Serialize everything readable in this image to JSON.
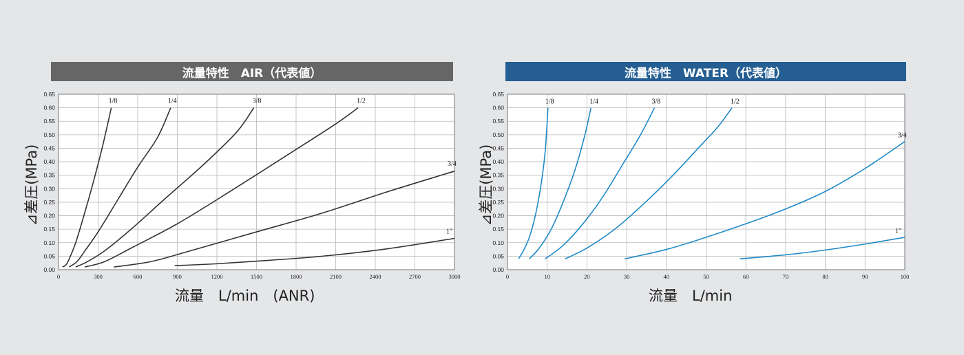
{
  "colors": {
    "background": "#e5e6e8",
    "air_header": "#666666",
    "water_header": "#245e92",
    "air_line": "#333333",
    "water_line": "#1f8ac8"
  },
  "chart_data": [
    {
      "type": "line",
      "header": "流量特性　AIR（代表値）",
      "xlabel": "流量　L/min　(ANR)",
      "ylabel": "⊿差圧(MPa)",
      "xlim": [
        0,
        3000
      ],
      "ylim": [
        0,
        0.65
      ],
      "x_ticks": [
        "0",
        "300",
        "600",
        "900",
        "1200",
        "1500",
        "1800",
        "2100",
        "2400",
        "2700",
        "3000"
      ],
      "y_ticks": [
        "0.00",
        "0.05",
        "0.10",
        "0.15",
        "0.20",
        "0.25",
        "0.30",
        "0.35",
        "0.40",
        "0.45",
        "0.50",
        "0.55",
        "0.60",
        "0.65"
      ],
      "grid": true,
      "series": [
        {
          "name": "1/8",
          "points": [
            [
              30,
              0.01
            ],
            [
              60,
              0.02
            ],
            [
              90,
              0.05
            ],
            [
              130,
              0.1
            ],
            [
              180,
              0.18
            ],
            [
              250,
              0.3
            ],
            [
              330,
              0.45
            ],
            [
              400,
              0.6
            ]
          ]
        },
        {
          "name": "1/4",
          "points": [
            [
              80,
              0.01
            ],
            [
              140,
              0.03
            ],
            [
              200,
              0.07
            ],
            [
              300,
              0.14
            ],
            [
              450,
              0.26
            ],
            [
              600,
              0.38
            ],
            [
              750,
              0.49
            ],
            [
              850,
              0.6
            ]
          ]
        },
        {
          "name": "3/8",
          "points": [
            [
              130,
              0.01
            ],
            [
              220,
              0.03
            ],
            [
              350,
              0.07
            ],
            [
              550,
              0.15
            ],
            [
              800,
              0.26
            ],
            [
              1100,
              0.39
            ],
            [
              1350,
              0.51
            ],
            [
              1480,
              0.6
            ]
          ]
        },
        {
          "name": "1/2",
          "points": [
            [
              200,
              0.01
            ],
            [
              350,
              0.03
            ],
            [
              550,
              0.08
            ],
            [
              900,
              0.17
            ],
            [
              1300,
              0.29
            ],
            [
              1750,
              0.43
            ],
            [
              2100,
              0.54
            ],
            [
              2270,
              0.6
            ]
          ]
        },
        {
          "name": "3/4",
          "points": [
            [
              420,
              0.01
            ],
            [
              700,
              0.03
            ],
            [
              1000,
              0.07
            ],
            [
              1500,
              0.14
            ],
            [
              2000,
              0.21
            ],
            [
              2500,
              0.29
            ],
            [
              3000,
              0.365
            ]
          ]
        },
        {
          "name": "1″",
          "points": [
            [
              880,
              0.015
            ],
            [
              1200,
              0.022
            ],
            [
              1600,
              0.035
            ],
            [
              2000,
              0.05
            ],
            [
              2500,
              0.078
            ],
            [
              3000,
              0.116
            ]
          ]
        }
      ]
    },
    {
      "type": "line",
      "header": "流量特性　WATER（代表値）",
      "xlabel": "流量　L/min",
      "ylabel": "⊿差圧(MPa)",
      "xlim": [
        0,
        100
      ],
      "ylim": [
        0,
        0.65
      ],
      "x_ticks": [
        "0",
        "10",
        "20",
        "30",
        "40",
        "50",
        "60",
        "70",
        "80",
        "90",
        "100"
      ],
      "y_ticks": [
        "0.00",
        "0.05",
        "0.10",
        "0.15",
        "0.20",
        "0.25",
        "0.30",
        "0.35",
        "0.40",
        "0.45",
        "0.50",
        "0.55",
        "0.60",
        "0.65"
      ],
      "grid": true,
      "series": [
        {
          "name": "1/8",
          "points": [
            [
              2.8,
              0.04
            ],
            [
              4,
              0.07
            ],
            [
              5.5,
              0.12
            ],
            [
              7,
              0.2
            ],
            [
              8.5,
              0.32
            ],
            [
              9.5,
              0.44
            ],
            [
              10.2,
              0.6
            ]
          ]
        },
        {
          "name": "1/4",
          "points": [
            [
              5.5,
              0.04
            ],
            [
              8,
              0.08
            ],
            [
              11,
              0.15
            ],
            [
              14,
              0.25
            ],
            [
              17,
              0.37
            ],
            [
              19.5,
              0.5
            ],
            [
              21,
              0.6
            ]
          ]
        },
        {
          "name": "3/8",
          "points": [
            [
              9.5,
              0.04
            ],
            [
              14,
              0.09
            ],
            [
              19,
              0.17
            ],
            [
              24,
              0.27
            ],
            [
              29,
              0.39
            ],
            [
              33.5,
              0.5
            ],
            [
              37,
              0.6
            ]
          ]
        },
        {
          "name": "1/2",
          "points": [
            [
              14.5,
              0.04
            ],
            [
              20,
              0.08
            ],
            [
              27,
              0.15
            ],
            [
              34,
              0.24
            ],
            [
              41,
              0.34
            ],
            [
              48,
              0.45
            ],
            [
              53,
              0.53
            ],
            [
              56.5,
              0.6
            ]
          ]
        },
        {
          "name": "3/4",
          "points": [
            [
              29.5,
              0.04
            ],
            [
              40,
              0.075
            ],
            [
              50,
              0.12
            ],
            [
              60,
              0.17
            ],
            [
              70,
              0.225
            ],
            [
              80,
              0.29
            ],
            [
              90,
              0.375
            ],
            [
              100,
              0.475
            ]
          ]
        },
        {
          "name": "1″",
          "points": [
            [
              58.5,
              0.04
            ],
            [
              70,
              0.055
            ],
            [
              80,
              0.073
            ],
            [
              90,
              0.095
            ],
            [
              100,
              0.12
            ]
          ]
        }
      ]
    }
  ]
}
